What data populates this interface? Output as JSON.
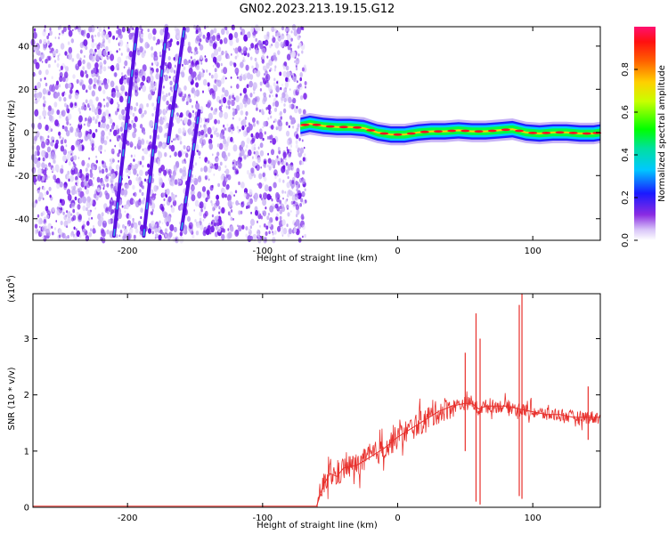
{
  "title": "GN02.2023.213.19.15.G12",
  "chart_data": [
    {
      "type": "heatmap",
      "xlabel": "Height of straight line (km)",
      "ylabel": "Frequency (Hz)",
      "xlim": [
        -270,
        150
      ],
      "ylim": [
        -50,
        49
      ],
      "xticks": [
        -200,
        -100,
        0,
        100
      ],
      "yticks": [
        -40,
        -20,
        0,
        20,
        40
      ],
      "colorbar": {
        "label": "Normalized spectral amplitude",
        "range": [
          0,
          1
        ],
        "ticks": [
          "0.0",
          "0.2",
          "0.4",
          "0.6",
          "0.8"
        ]
      },
      "noise_region_x": [
        -270,
        -72
      ],
      "diagonal_streaks": [
        {
          "x": [
            -210,
            -193
          ],
          "y": [
            -48,
            48
          ]
        },
        {
          "x": [
            -188,
            -171
          ],
          "y": [
            -48,
            48
          ]
        },
        {
          "x": [
            -170,
            -158
          ],
          "y": [
            -5,
            48
          ]
        },
        {
          "x": [
            -160,
            -147
          ],
          "y": [
            -45,
            10
          ]
        }
      ],
      "signal_band": {
        "x": [
          -72,
          -65,
          -55,
          -45,
          -35,
          -25,
          -15,
          -5,
          5,
          15,
          25,
          35,
          45,
          55,
          65,
          75,
          85,
          95,
          105,
          115,
          125,
          135,
          145,
          150
        ],
        "freq": [
          3,
          4,
          3,
          2.5,
          2.5,
          2,
          0,
          -1,
          -1,
          0,
          0.5,
          0.5,
          1,
          0.5,
          0.5,
          1,
          1.5,
          0,
          -0.5,
          0,
          0,
          -0.5,
          -0.5,
          0
        ]
      }
    },
    {
      "type": "line",
      "xlabel": "Height of straight line (km)",
      "ylabel": "SNR (10 * v/v)",
      "ylabel_multiplier": "(x10",
      "ylabel_exponent": "4",
      "ylabel_close": ")",
      "xlim": [
        -270,
        150
      ],
      "ylim": [
        0,
        3.8
      ],
      "xticks": [
        -200,
        -100,
        0,
        100
      ],
      "yticks": [
        0,
        1,
        2,
        3
      ],
      "color": "#e8302c",
      "series": [
        {
          "x": [
            -270,
            -60,
            -55,
            -50,
            -45,
            -40,
            -30,
            -20,
            -10,
            0,
            10,
            20,
            30,
            40,
            50,
            55,
            60,
            65,
            70,
            80,
            90,
            100,
            110,
            120,
            130,
            140,
            150
          ],
          "values": [
            0.02,
            0.02,
            0.4,
            0.6,
            0.55,
            0.7,
            0.75,
            0.9,
            1.05,
            1.25,
            1.4,
            1.55,
            1.7,
            1.8,
            1.85,
            1.85,
            1.75,
            1.8,
            1.8,
            1.8,
            1.75,
            1.7,
            1.65,
            1.65,
            1.6,
            1.6,
            1.6
          ]
        }
      ],
      "spikes": [
        {
          "x": 50,
          "low": 1.0,
          "high": 2.75
        },
        {
          "x": 58,
          "low": 0.1,
          "high": 3.45
        },
        {
          "x": 61,
          "low": 0.05,
          "high": 3.0
        },
        {
          "x": 90,
          "low": 0.2,
          "high": 3.6
        },
        {
          "x": 92,
          "low": 0.15,
          "high": 3.8
        },
        {
          "x": 141,
          "low": 1.2,
          "high": 2.15
        }
      ]
    }
  ]
}
